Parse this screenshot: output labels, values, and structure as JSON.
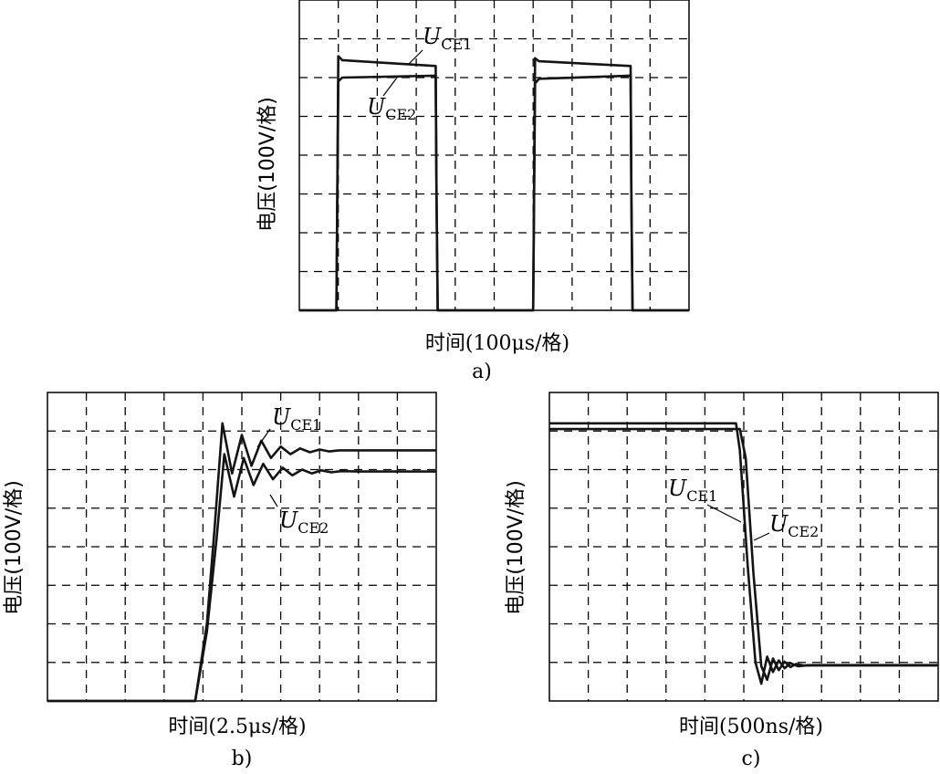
{
  "figure": {
    "colors": {
      "trace": "#141414",
      "frame": "#000000",
      "grid": "#000000",
      "background": "#ffffff"
    }
  },
  "chart_data": [
    {
      "type": "line",
      "panel_label": "a)",
      "xlabel": "时间(100μs/格)",
      "ylabel": "电压(100V/格)",
      "grid": true,
      "divisions": {
        "x": 10,
        "y": 8
      },
      "xlim": [
        0,
        10
      ],
      "ylim": [
        0,
        8
      ],
      "series": [
        {
          "name": "U_CE1",
          "label_main": "U",
          "label_sub": "CE1",
          "x": [
            0,
            0.95,
            1.0,
            1.1,
            3.5,
            3.52,
            3.55,
            6.0,
            6.05,
            6.15,
            8.5,
            8.52,
            8.55,
            10
          ],
          "y": [
            0,
            0,
            6.55,
            6.45,
            6.3,
            3.0,
            0,
            0,
            6.5,
            6.42,
            6.3,
            3.0,
            0,
            0
          ]
        },
        {
          "name": "U_CE2",
          "label_main": "U",
          "label_sub": "CE2",
          "x": [
            0,
            0.95,
            1.0,
            1.1,
            3.5,
            3.52,
            3.55,
            6.0,
            6.05,
            6.15,
            8.5,
            8.52,
            8.55,
            10
          ],
          "y": [
            0,
            0,
            5.9,
            6.0,
            6.05,
            3.0,
            0,
            0,
            5.85,
            5.97,
            6.05,
            3.0,
            0,
            0
          ]
        }
      ]
    },
    {
      "type": "line",
      "panel_label": "b)",
      "xlabel": "时间(2.5μs/格)",
      "ylabel": "电压(100V/格)",
      "grid": true,
      "divisions": {
        "x": 10,
        "y": 8
      },
      "xlim": [
        0,
        10
      ],
      "ylim": [
        0,
        8
      ],
      "series": [
        {
          "name": "U_CE1",
          "label_main": "U",
          "label_sub": "CE1",
          "x": [
            0,
            3.8,
            4.1,
            4.3,
            4.5,
            4.75,
            5.0,
            5.25,
            5.5,
            5.75,
            6.0,
            6.25,
            6.5,
            6.75,
            7.0,
            7.25,
            7.5,
            8.0,
            10
          ],
          "y": [
            0,
            0,
            2.0,
            4.5,
            7.2,
            5.9,
            6.9,
            6.1,
            6.75,
            6.3,
            6.6,
            6.4,
            6.55,
            6.45,
            6.52,
            6.47,
            6.5,
            6.5,
            6.5
          ]
        },
        {
          "name": "U_CE2",
          "label_main": "U",
          "label_sub": "CE2",
          "x": [
            0,
            3.8,
            4.1,
            4.35,
            4.55,
            4.8,
            5.05,
            5.3,
            5.55,
            5.8,
            6.05,
            6.3,
            6.55,
            6.8,
            7.05,
            7.3,
            7.55,
            8.0,
            10
          ],
          "y": [
            0,
            0,
            1.8,
            4.2,
            6.4,
            5.3,
            6.3,
            5.6,
            6.15,
            5.75,
            6.05,
            5.85,
            6.0,
            5.9,
            5.98,
            5.93,
            5.96,
            5.95,
            5.95
          ]
        }
      ]
    },
    {
      "type": "line",
      "panel_label": "c)",
      "xlabel": "时间(500ns/格)",
      "ylabel": "电压(100V/格)",
      "grid": true,
      "divisions": {
        "x": 10,
        "y": 8
      },
      "xlim": [
        0,
        10
      ],
      "ylim": [
        0,
        8
      ],
      "series": [
        {
          "name": "U_CE1",
          "label_main": "U",
          "label_sub": "CE1",
          "x": [
            0,
            4.8,
            4.9,
            5.1,
            5.3,
            5.45,
            5.6,
            5.75,
            5.9,
            6.05,
            6.2,
            6.4,
            6.6,
            10
          ],
          "y": [
            7.2,
            7.2,
            6.5,
            3.5,
            1.0,
            0.45,
            1.15,
            0.75,
            1.05,
            0.85,
            0.98,
            0.9,
            0.92,
            0.92
          ]
        },
        {
          "name": "U_CE2",
          "label_main": "U",
          "label_sub": "CE2",
          "x": [
            0,
            4.9,
            5.05,
            5.25,
            5.45,
            5.6,
            5.75,
            5.9,
            6.05,
            6.2,
            6.35,
            6.55,
            6.75,
            10
          ],
          "y": [
            7.05,
            7.05,
            6.3,
            3.3,
            0.9,
            0.55,
            1.1,
            0.8,
            1.02,
            0.88,
            0.96,
            0.92,
            0.93,
            0.93
          ]
        }
      ]
    }
  ]
}
